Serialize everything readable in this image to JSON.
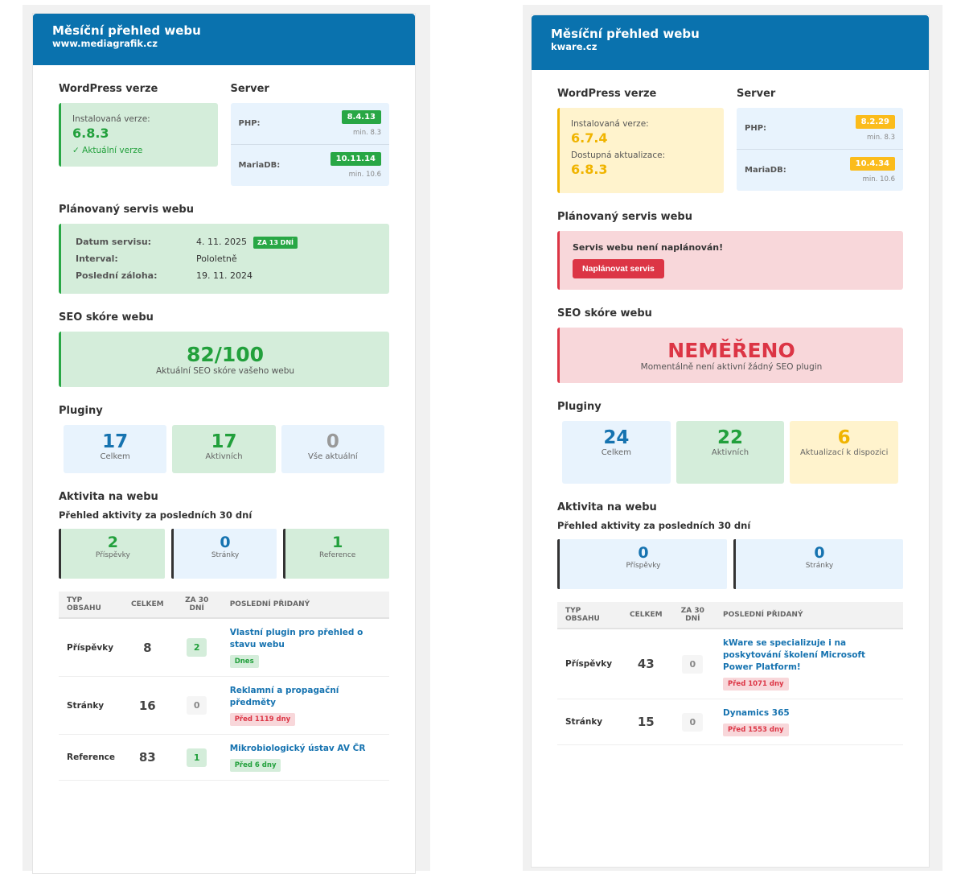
{
  "colors": {
    "header": "#0a72ae",
    "green": "#28a745",
    "blue": "#1673b0",
    "yellow": "#f0b400",
    "red": "#dc3545"
  },
  "sites": [
    {
      "title": "Měsíční přehled webu",
      "url": "www.mediagrafik.cz",
      "wp": {
        "heading": "WordPress verze",
        "state": "ok",
        "installed_label": "Instalovaná verze:",
        "installed": "6.8.3",
        "status": "✓ Aktuální verze"
      },
      "server": {
        "heading": "Server",
        "rows": [
          {
            "label": "PHP:",
            "value": "8.4.13",
            "min": "min. 8.3",
            "state": "ok"
          },
          {
            "label": "MariaDB:",
            "value": "10.11.14",
            "min": "min. 10.6",
            "state": "ok"
          }
        ]
      },
      "service": {
        "heading": "Plánovaný servis webu",
        "planned": true,
        "date_label": "Datum servisu:",
        "date": "4. 11. 2025",
        "countdown": "ZA 13 DNÍ",
        "interval_label": "Interval:",
        "interval": "Pololetně",
        "backup_label": "Poslední záloha:",
        "backup": "19. 11. 2024"
      },
      "seo": {
        "heading": "SEO skóre webu",
        "state": "ok",
        "value": "82/100",
        "caption": "Aktuální SEO skóre vašeho webu"
      },
      "plugins": {
        "heading": "Pluginy",
        "stats": [
          {
            "value": "17",
            "label": "Celkem",
            "color": "blue"
          },
          {
            "value": "17",
            "label": "Aktivních",
            "color": "green"
          },
          {
            "value": "0",
            "label": "Vše aktuální",
            "color": "blue-gray"
          }
        ]
      },
      "activity": {
        "heading": "Aktivita na webu",
        "subheading": "Přehled aktivity za posledních 30 dní",
        "stats": [
          {
            "value": "2",
            "label": "Příspěvky",
            "color": "green"
          },
          {
            "value": "0",
            "label": "Stránky",
            "color": "blue"
          },
          {
            "value": "1",
            "label": "Reference",
            "color": "green"
          }
        ]
      },
      "table": {
        "headers": [
          "TYP OBSAHU",
          "CELKEM",
          "ZA 30 DNÍ",
          "POSLEDNÍ PŘIDANÝ"
        ],
        "rows": [
          {
            "type": "Příspěvky",
            "total": "8",
            "month": "2",
            "last": "Vlastní plugin pro přehled o stavu webu",
            "age": "Dnes",
            "age_state": "recent"
          },
          {
            "type": "Stránky",
            "total": "16",
            "month": "0",
            "last": "Reklamní a propagační předměty",
            "age": "Před 1119 dny",
            "age_state": "old"
          },
          {
            "type": "Reference",
            "total": "83",
            "month": "1",
            "last": "Mikrobiologický ústav AV ČR",
            "age": "Před 6 dny",
            "age_state": "recent"
          }
        ]
      }
    },
    {
      "title": "Měsíční přehled webu",
      "url": "kware.cz",
      "wp": {
        "heading": "WordPress verze",
        "state": "warn",
        "installed_label": "Instalovaná verze:",
        "installed": "6.7.4",
        "update_label": "Dostupná aktualizace:",
        "update": "6.8.3"
      },
      "server": {
        "heading": "Server",
        "rows": [
          {
            "label": "PHP:",
            "value": "8.2.29",
            "min": "min. 8.3",
            "state": "warn"
          },
          {
            "label": "MariaDB:",
            "value": "10.4.34",
            "min": "min. 10.6",
            "state": "warn"
          }
        ]
      },
      "service": {
        "heading": "Plánovaný servis webu",
        "planned": false,
        "message": "Servis webu není naplánován!",
        "button": "Naplánovat servis"
      },
      "seo": {
        "heading": "SEO skóre webu",
        "state": "error",
        "value": "NEMĚŘENO",
        "caption": "Momentálně není aktivní žádný SEO plugin"
      },
      "plugins": {
        "heading": "Pluginy",
        "stats": [
          {
            "value": "24",
            "label": "Celkem",
            "color": "blue"
          },
          {
            "value": "22",
            "label": "Aktivních",
            "color": "green"
          },
          {
            "value": "6",
            "label": "Aktualizací k dispozici",
            "color": "yellow"
          }
        ]
      },
      "activity": {
        "heading": "Aktivita na webu",
        "subheading": "Přehled aktivity za posledních 30 dní",
        "stats": [
          {
            "value": "0",
            "label": "Příspěvky",
            "color": "blue"
          },
          {
            "value": "0",
            "label": "Stránky",
            "color": "blue"
          }
        ]
      },
      "table": {
        "headers": [
          "TYP OBSAHU",
          "CELKEM",
          "ZA 30 DNÍ",
          "POSLEDNÍ PŘIDANÝ"
        ],
        "rows": [
          {
            "type": "Příspěvky",
            "total": "43",
            "month": "0",
            "last": "kWare se specializuje i na poskytování školení Microsoft Power Platform!",
            "age": "Před 1071 dny",
            "age_state": "old"
          },
          {
            "type": "Stránky",
            "total": "15",
            "month": "0",
            "last": "Dynamics 365",
            "age": "Před 1553 dny",
            "age_state": "old"
          }
        ]
      }
    }
  ]
}
